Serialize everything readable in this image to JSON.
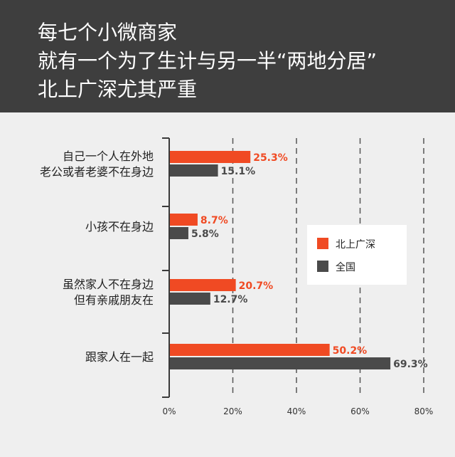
{
  "title": [
    "每七个小微商家",
    "就有一个为了生计与另一半“两地分居”",
    "北上广深尤其严重"
  ],
  "colors": {
    "header_bg": "#3e3e3e",
    "bg": "#efefef",
    "series1": "#f04a23",
    "series2": "#4a4a4a"
  },
  "chart_data": {
    "type": "bar",
    "orientation": "horizontal",
    "categories": [
      [
        "自己一个人在外地",
        "老公或者老婆不在身边"
      ],
      [
        "小孩不在身边"
      ],
      [
        "虽然家人不在身边",
        "但有亲戚朋友在"
      ],
      [
        "跟家人在一起"
      ]
    ],
    "series": [
      {
        "name": "北上广深",
        "values": [
          25.3,
          8.7,
          20.7,
          50.2
        ],
        "labels": [
          "25.3%",
          "8.7%",
          "20.7%",
          "50.2%"
        ]
      },
      {
        "name": "全国",
        "values": [
          15.1,
          5.8,
          12.7,
          69.3
        ],
        "labels": [
          "15.1%",
          "5.8%",
          "12.7%",
          "69.3%"
        ]
      }
    ],
    "x_ticks": [
      "0%",
      "20%",
      "40%",
      "60%",
      "80%"
    ],
    "xlim": [
      0,
      80
    ],
    "grid": true,
    "legend": "center-right"
  }
}
